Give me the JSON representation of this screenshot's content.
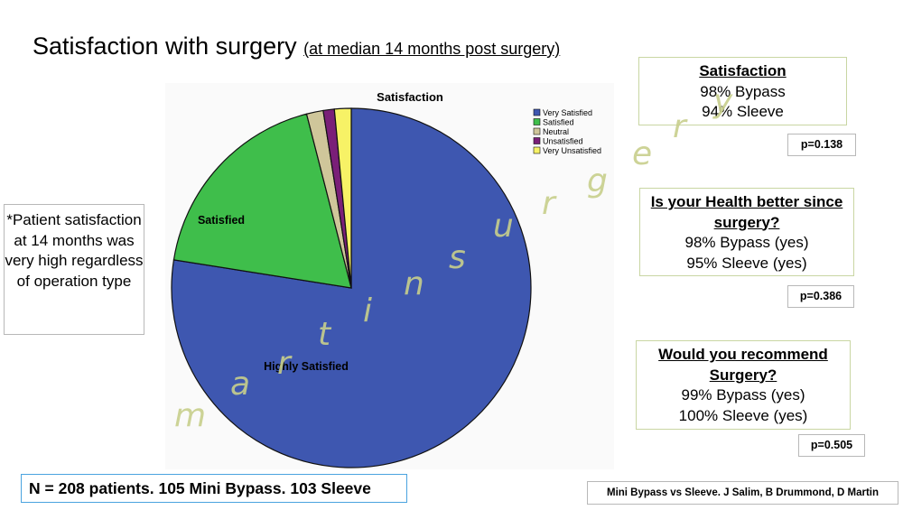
{
  "slide": {
    "title": "Satisfaction with surgery",
    "subtitle": "(at median 14 months post surgery)",
    "note": "*Patient satisfaction at 14 months was very high regardless of operation type",
    "n_summary": "N = 208 patients. 105 Mini Bypass. 103 Sleeve",
    "citation": "Mini Bypass vs Sleeve. J Salim, B Drummond, D Martin",
    "watermark": [
      "m",
      "a",
      "r",
      "t",
      "i",
      "n",
      "s",
      "u",
      "r",
      "g",
      "e",
      "r",
      "y"
    ]
  },
  "stats": [
    {
      "heading": "Satisfaction",
      "line1": "98% Bypass",
      "line2": "94% Sleeve",
      "p": "p=0.138"
    },
    {
      "heading": "Is your Health better since surgery?",
      "line1": "98% Bypass (yes)",
      "line2": "95% Sleeve (yes)",
      "p": "p=0.386"
    },
    {
      "heading": "Would you recommend Surgery?",
      "line1": "99% Bypass (yes)",
      "line2": "100% Sleeve (yes)",
      "p": "p=0.505"
    }
  ],
  "chart_data": {
    "type": "pie",
    "title": "Satisfaction",
    "legend_position": "top-right",
    "slices": [
      {
        "label": "Very Satisfied",
        "value": 77.5,
        "color": "#3e57b0",
        "data_label": "Highly Satisfied"
      },
      {
        "label": "Satisfied",
        "value": 18.5,
        "color": "#3fbe4b",
        "data_label": "Satisfied"
      },
      {
        "label": "Neutral",
        "value": 1.5,
        "color": "#cfc69a",
        "data_label": ""
      },
      {
        "label": "Unsatisfied",
        "value": 1.0,
        "color": "#7a1f78",
        "data_label": ""
      },
      {
        "label": "Very Unsatisfied",
        "value": 1.5,
        "color": "#f7f266",
        "data_label": ""
      }
    ]
  }
}
